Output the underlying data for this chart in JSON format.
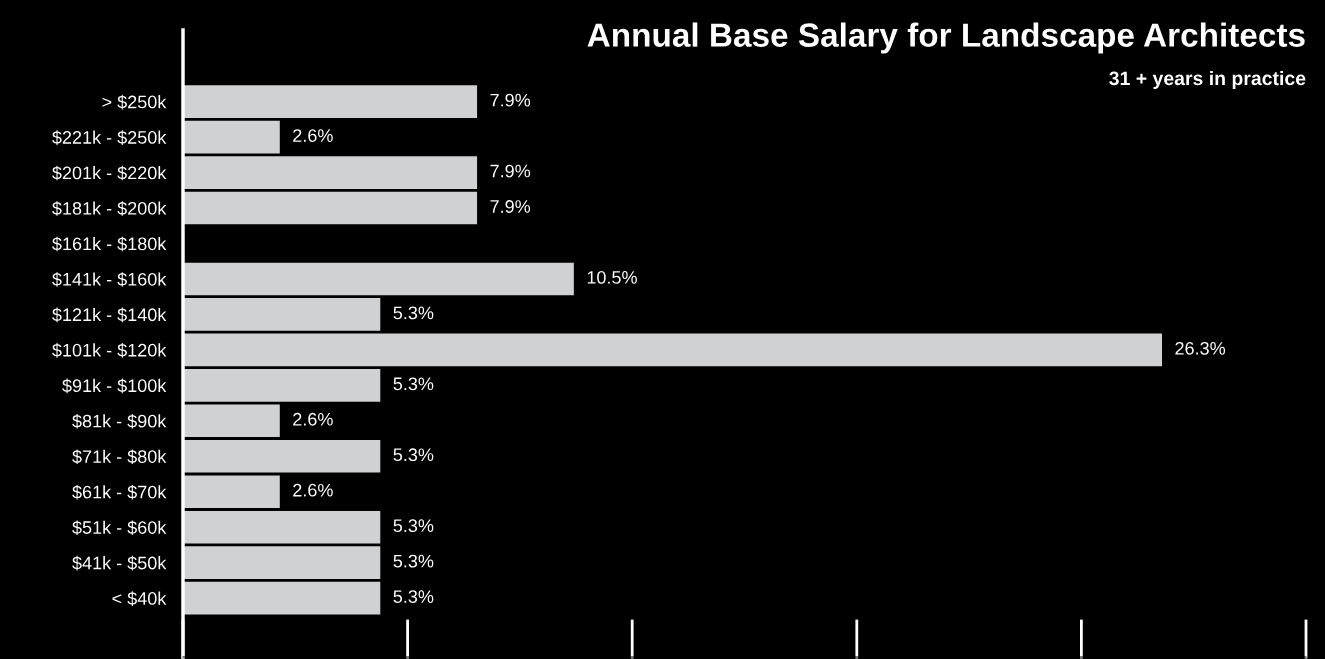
{
  "chart_data": {
    "type": "bar",
    "orientation": "horizontal",
    "title": "Annual Base Salary for Landscape Architects",
    "subtitle": "31 + years in practice",
    "categories": [
      "> $250k",
      "$221k - $250k",
      "$201k - $220k",
      "$181k - $200k",
      "$161k - $180k",
      "$141k - $160k",
      "$121k - $140k",
      "$101k - $120k",
      "$91k - $100k",
      "$81k - $90k",
      "$71k - $80k",
      "$61k - $70k",
      "$51k - $60k",
      "$41k - $50k",
      "< $40k"
    ],
    "values": [
      7.9,
      2.6,
      7.9,
      7.9,
      0,
      10.5,
      5.3,
      26.3,
      5.3,
      2.6,
      5.3,
      2.6,
      5.3,
      5.3,
      5.3
    ],
    "value_labels": [
      "7.9%",
      "2.6%",
      "7.9%",
      "7.9%",
      null,
      "10.5%",
      "5.3%",
      "26.3%",
      "5.3%",
      "2.6%",
      "5.3%",
      "2.6%",
      "5.3%",
      "5.3%",
      "5.3%"
    ],
    "color": "#d0d1d3",
    "tick_labels": "y",
    "grid": false,
    "legend": false
  }
}
